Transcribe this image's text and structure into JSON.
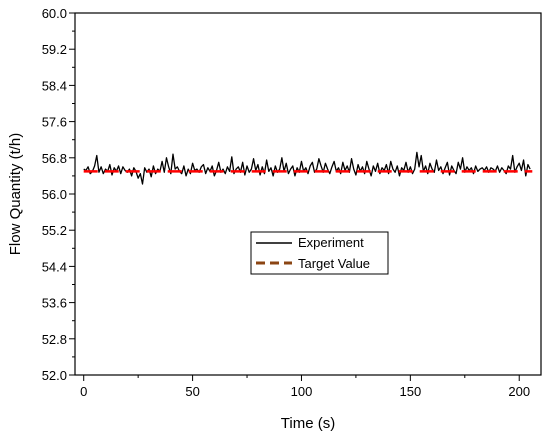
{
  "chart_data": {
    "type": "line",
    "title": "",
    "xlabel": "Time (s)",
    "ylabel": "Flow Quantity (t/h)",
    "xlim": [
      -4,
      210
    ],
    "ylim": [
      52.0,
      60.0
    ],
    "x_ticks": [
      0,
      50,
      100,
      150,
      200
    ],
    "x_tick_labels": [
      "0",
      "50",
      "100",
      "150",
      "200"
    ],
    "y_ticks": [
      52.0,
      52.8,
      53.6,
      54.4,
      55.2,
      56.0,
      56.8,
      57.6,
      58.4,
      59.2,
      60.0
    ],
    "y_tick_labels": [
      "52.0",
      "52.8",
      "53.6",
      "54.4",
      "55.2",
      "56.0",
      "56.8",
      "57.6",
      "58.4",
      "59.2",
      "60.0"
    ],
    "grid": false,
    "legend_position": "center",
    "series": [
      {
        "name": "Experiment",
        "color": "#000000",
        "style": "solid",
        "x_start": 0,
        "x_step": 1,
        "values": [
          56.55,
          56.52,
          56.6,
          56.45,
          56.5,
          56.62,
          56.85,
          56.48,
          56.6,
          56.45,
          56.55,
          56.5,
          56.65,
          56.42,
          56.58,
          56.5,
          56.62,
          56.45,
          56.6,
          56.52,
          56.48,
          56.55,
          56.4,
          56.58,
          56.5,
          56.35,
          56.45,
          56.22,
          56.58,
          56.48,
          56.55,
          56.38,
          56.62,
          56.45,
          56.55,
          56.5,
          56.72,
          56.48,
          56.8,
          56.6,
          56.45,
          56.88,
          56.55,
          56.6,
          56.5,
          56.45,
          56.62,
          56.4,
          56.55,
          56.45,
          56.68,
          56.52,
          56.55,
          56.48,
          56.6,
          56.65,
          56.45,
          56.58,
          56.5,
          56.62,
          56.4,
          56.52,
          56.7,
          56.48,
          56.55,
          56.45,
          56.6,
          56.5,
          56.82,
          56.45,
          56.55,
          56.6,
          56.48,
          56.7,
          56.42,
          56.62,
          56.48,
          56.55,
          56.78,
          56.52,
          56.65,
          56.42,
          56.6,
          56.45,
          56.75,
          56.5,
          56.58,
          56.4,
          56.62,
          56.48,
          56.55,
          56.8,
          56.5,
          56.68,
          56.45,
          56.55,
          56.62,
          56.4,
          56.58,
          56.48,
          56.72,
          56.5,
          56.58,
          56.45,
          56.62,
          56.7,
          56.48,
          56.55,
          56.78,
          56.62,
          56.48,
          56.68,
          56.55,
          56.45,
          56.6,
          56.72,
          56.5,
          56.58,
          56.45,
          56.7,
          56.52,
          56.62,
          56.48,
          56.78,
          56.55,
          56.42,
          56.65,
          56.5,
          56.6,
          56.45,
          56.72,
          56.55,
          56.4,
          56.62,
          56.5,
          56.68,
          56.45,
          56.58,
          56.52,
          56.65,
          56.45,
          56.72,
          56.55,
          56.48,
          56.62,
          56.4,
          56.58,
          56.52,
          56.7,
          56.48,
          56.6,
          56.45,
          56.55,
          56.92,
          56.6,
          56.85,
          56.5,
          56.62,
          56.45,
          56.68,
          56.55,
          56.48,
          56.75,
          56.52,
          56.6,
          56.45,
          56.58,
          56.7,
          56.42,
          56.62,
          56.52,
          56.45,
          56.7,
          56.55,
          56.8,
          56.48,
          56.6,
          56.52,
          56.58,
          56.45,
          56.62,
          56.5,
          56.55,
          56.58,
          56.52,
          56.6,
          56.48,
          56.58,
          56.55,
          56.5,
          56.62,
          56.48,
          56.58,
          56.52,
          56.45,
          56.62,
          56.55,
          56.85,
          56.48,
          56.6,
          56.68,
          56.52,
          56.75,
          56.4,
          56.65,
          56.55
        ]
      },
      {
        "name": "Target Value",
        "color": "#ff0000",
        "legend_color": "#8b4513",
        "style": "dashed",
        "x": [
          0,
          206
        ],
        "values": [
          56.5,
          56.5
        ]
      }
    ]
  }
}
